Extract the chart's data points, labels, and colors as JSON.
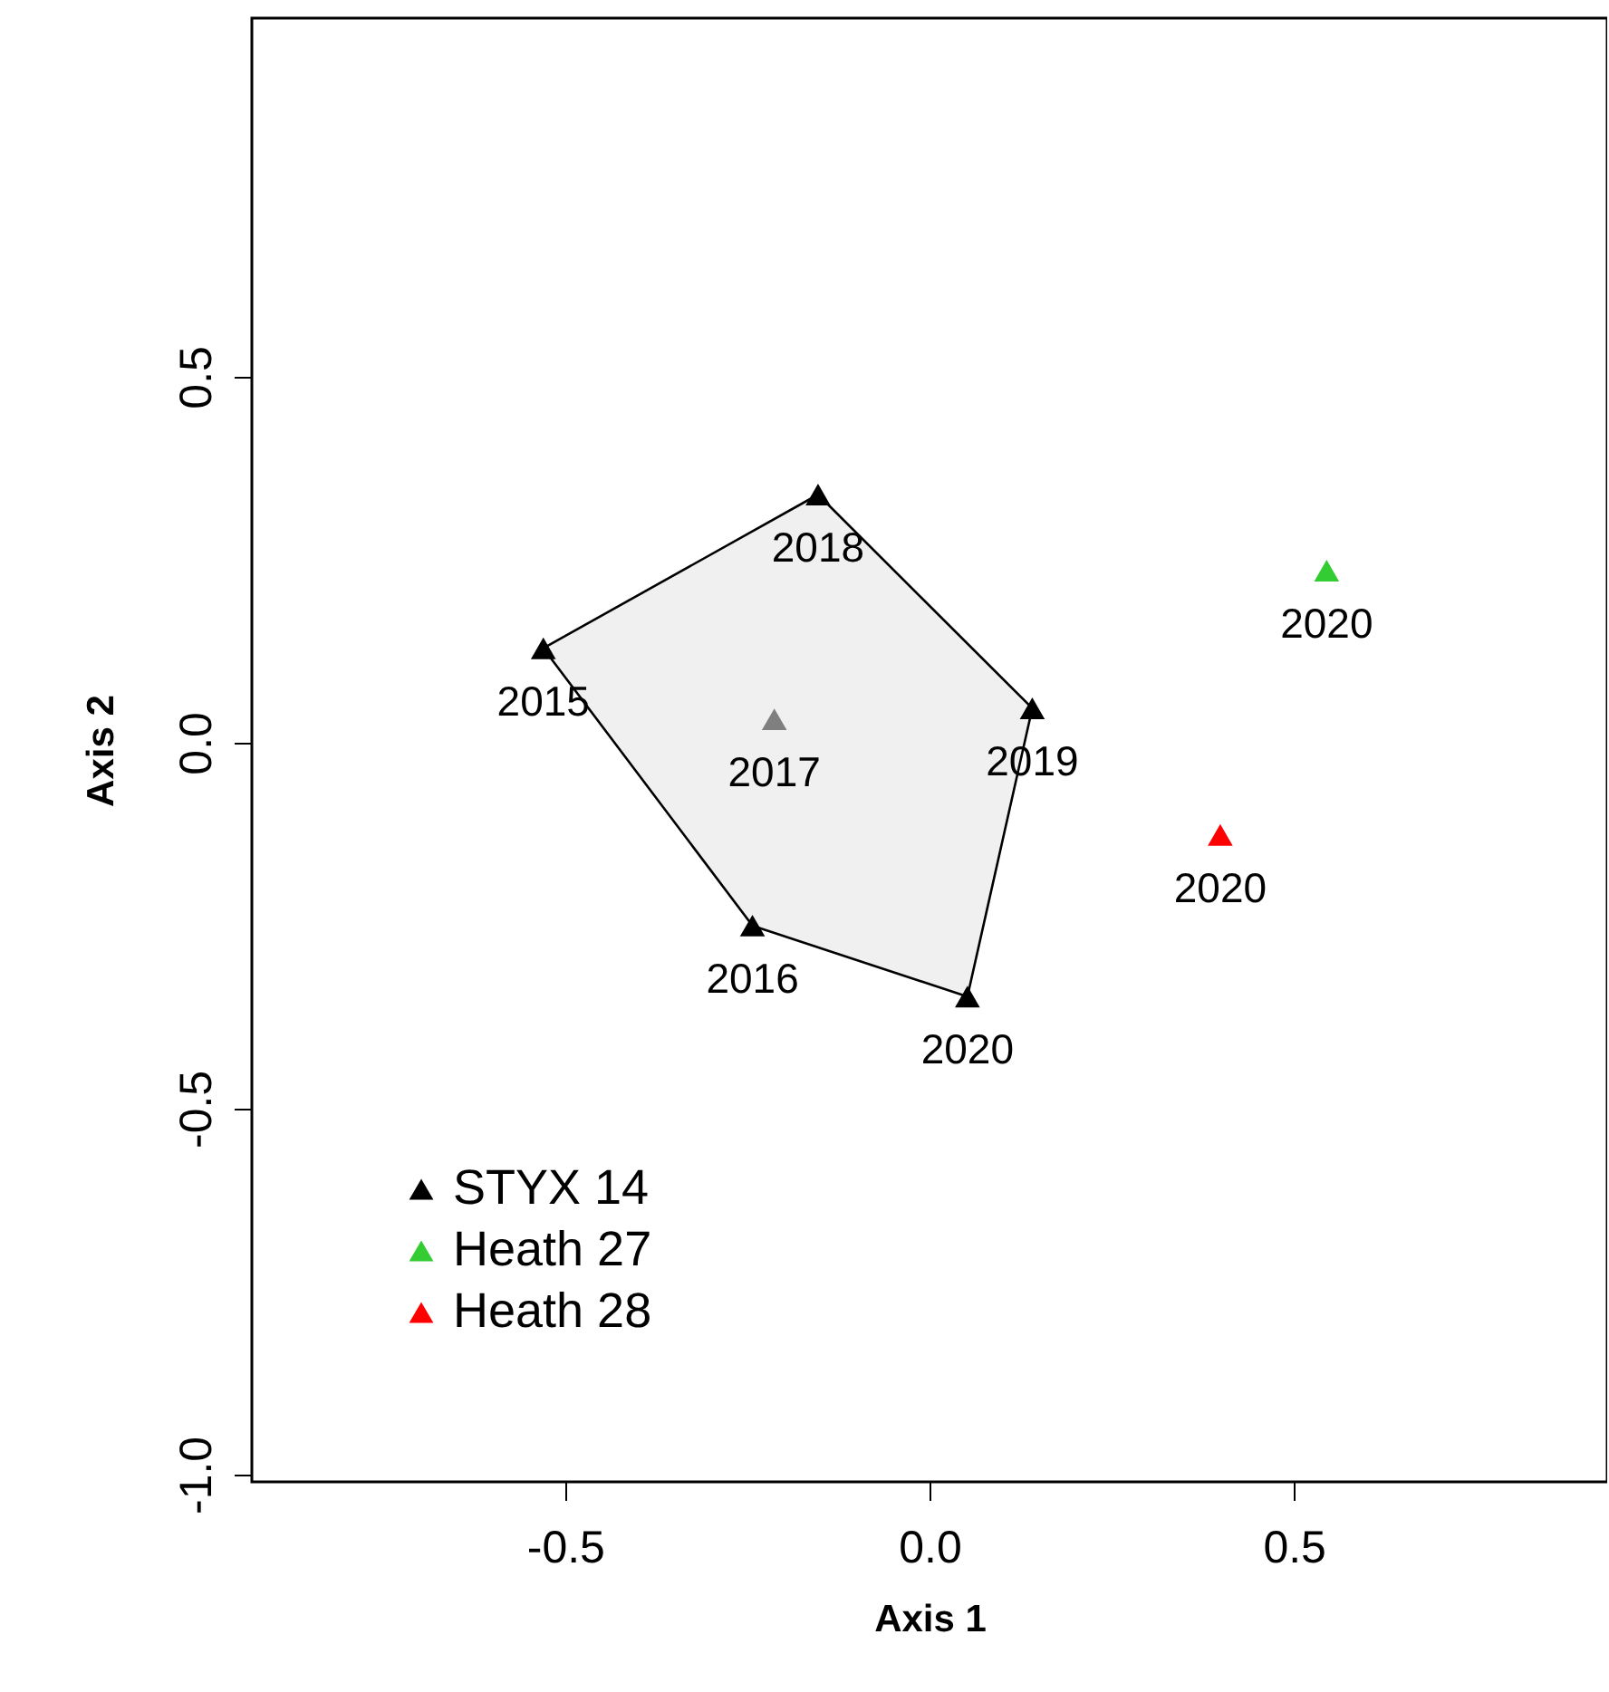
{
  "chart_data": {
    "type": "scatter",
    "xlabel": "Axis 1",
    "ylabel": "Axis 2",
    "xlim": [
      -0.93,
      0.93
    ],
    "ylim": [
      -1.01,
      0.99
    ],
    "xticks": [
      -0.5,
      {
        "value": 0,
        "label": "0.0"
      },
      0.5
    ],
    "yticks": [
      {
        "value": -1,
        "label": "-1.0"
      },
      -0.5,
      {
        "value": 0,
        "label": "0.0"
      },
      0.5
    ],
    "grid": false,
    "legend": "bottom left",
    "marker": "triangle",
    "series": [
      {
        "type": "area",
        "marker": "none",
        "color": "#f0f0f0",
        "x": [
          -0.53,
          -0.153,
          0.141,
          0.052,
          -0.243
        ],
        "values": [
          0.129,
          0.339,
          0.047,
          -0.347,
          -0.25
        ]
      },
      {
        "name": "STYX 14",
        "color": "#000000",
        "x": [
          -0.53,
          -0.243,
          -0.153,
          0.141,
          0.052
        ],
        "values": [
          0.129,
          -0.25,
          0.339,
          0.047,
          -0.347
        ]
      },
      {
        "color": "#7f7f7f",
        "x": [
          -0.213
        ],
        "values": [
          0.032
        ]
      },
      {
        "name": "Heath 27",
        "color": "#33cc33",
        "x": [
          0.545
        ],
        "values": [
          0.235
        ]
      },
      {
        "name": "Heath 28",
        "color": "#ff0000",
        "x": [
          0.399
        ],
        "values": [
          -0.126
        ]
      }
    ],
    "annotations": [
      {
        "text": "2015",
        "x": -0.53,
        "y": 0.129
      },
      {
        "text": "2016",
        "x": -0.243,
        "y": -0.25
      },
      {
        "text": "2017",
        "x": -0.213,
        "y": 0.032
      },
      {
        "text": "2018",
        "x": -0.153,
        "y": 0.339
      },
      {
        "text": "2019",
        "x": 0.141,
        "y": 0.047
      },
      {
        "text": "2020",
        "x": 0.052,
        "y": -0.347
      },
      {
        "text": "2020",
        "x": 0.545,
        "y": 0.235
      },
      {
        "text": "2020",
        "x": 0.399,
        "y": -0.126
      }
    ]
  }
}
